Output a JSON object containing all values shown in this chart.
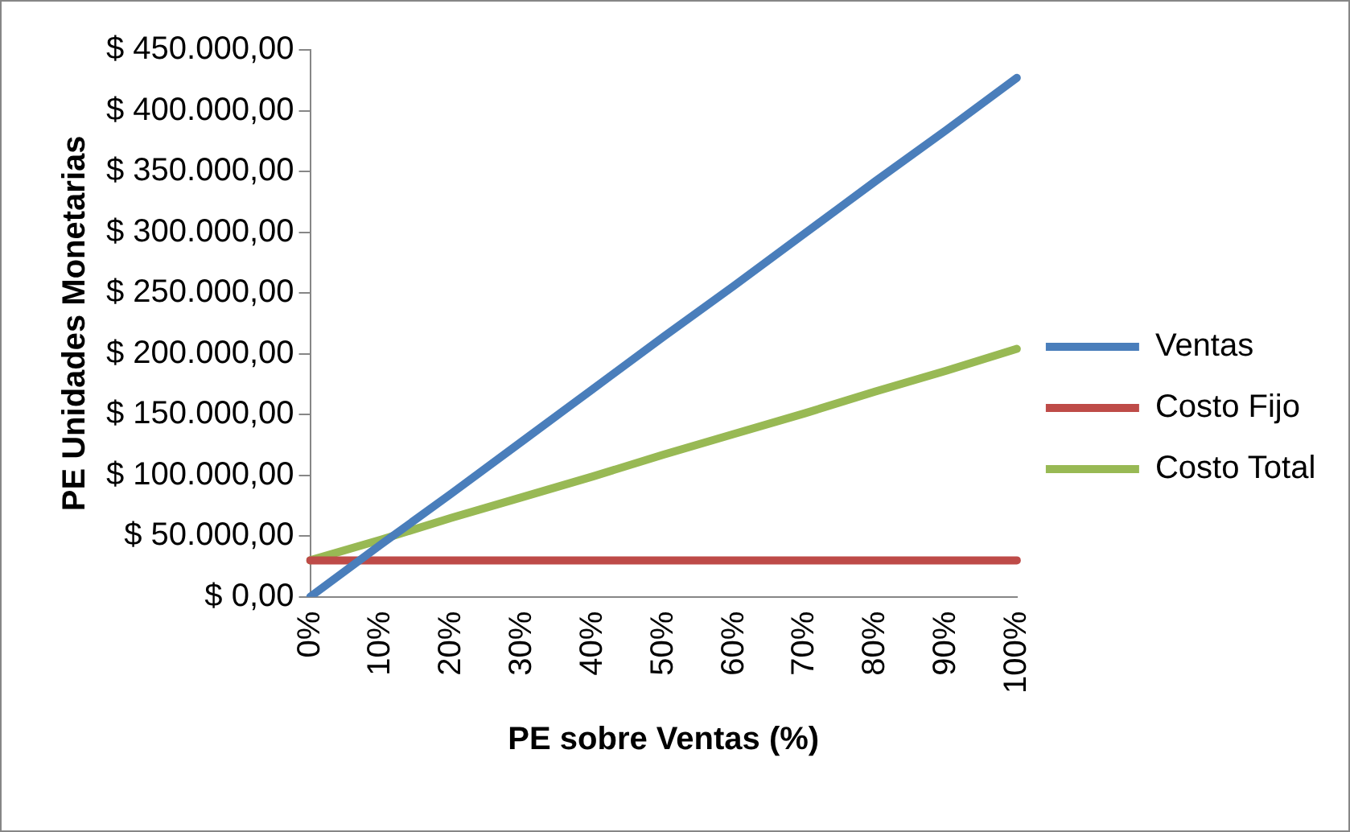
{
  "chart_data": {
    "type": "line",
    "xlabel": "PE sobre Ventas (%)",
    "ylabel": "PE Unidades Monetarias",
    "categories": [
      "0%",
      "10%",
      "20%",
      "30%",
      "40%",
      "50%",
      "60%",
      "70%",
      "80%",
      "90%",
      "100%"
    ],
    "series": [
      {
        "name": "Ventas",
        "color": "#4a7ebb",
        "values": [
          0,
          43000,
          85000,
          128000,
          171000,
          214000,
          256000,
          299000,
          342000,
          384000,
          427000
        ]
      },
      {
        "name": "Costo Fijo",
        "color": "#be4b48",
        "values": [
          30000,
          30000,
          30000,
          30000,
          30000,
          30000,
          30000,
          30000,
          30000,
          30000,
          30000
        ]
      },
      {
        "name": "Costo Total",
        "color": "#98b954",
        "values": [
          30000,
          47000,
          65000,
          82000,
          99000,
          117000,
          134000,
          151000,
          169000,
          186000,
          204000
        ]
      }
    ],
    "ylim": [
      0,
      450000
    ],
    "yticks": [
      {
        "value": 0,
        "label": "$ 0,00"
      },
      {
        "value": 50000,
        "label": "$ 50.000,00"
      },
      {
        "value": 100000,
        "label": "$ 100.000,00"
      },
      {
        "value": 150000,
        "label": "$ 150.000,00"
      },
      {
        "value": 200000,
        "label": "$ 200.000,00"
      },
      {
        "value": 250000,
        "label": "$ 250.000,00"
      },
      {
        "value": 300000,
        "label": "$ 300.000,00"
      },
      {
        "value": 350000,
        "label": "$ 350.000,00"
      },
      {
        "value": 400000,
        "label": "$ 400.000,00"
      },
      {
        "value": 450000,
        "label": "$ 450.000,00"
      }
    ],
    "grid": false,
    "legend": "right",
    "marker": "none",
    "line_style": "solid"
  }
}
